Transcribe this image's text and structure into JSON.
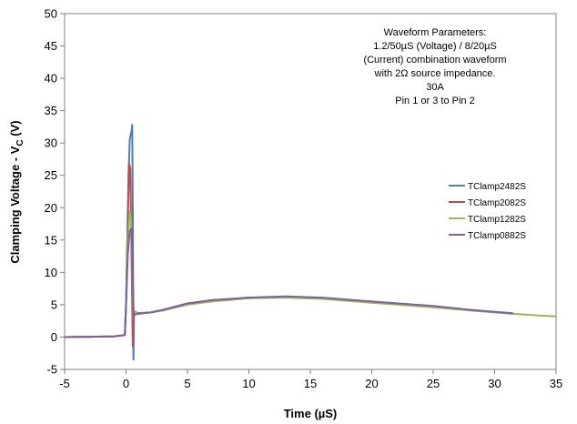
{
  "chart_data": {
    "type": "line",
    "title": "",
    "xlabel": "Time (µS)",
    "ylabel_main": "Clamping Voltage - V",
    "ylabel_sub": "C",
    "ylabel_unit": " (V)",
    "xlim": [
      -5,
      35
    ],
    "ylim": [
      -5,
      50
    ],
    "x_ticks": [
      -5,
      0,
      5,
      10,
      15,
      20,
      25,
      30,
      35
    ],
    "y_ticks": [
      -5,
      0,
      5,
      10,
      15,
      20,
      25,
      30,
      35,
      40,
      45,
      50
    ],
    "grid": false,
    "legend_position": "right",
    "annotation": [
      "Waveform Parameters:",
      "1.2/50µS (Voltage) / 8/20µS",
      "(Current) combination waveform",
      "with 2Ω source impedance.",
      "30A",
      "Pin 1 or 3 to Pin 2"
    ],
    "series": [
      {
        "name": "TClamp2482S",
        "color": "#4a7ebb",
        "x": [
          -5,
          -1,
          -0.1,
          0,
          0.2,
          0.3,
          0.45,
          0.5,
          0.55,
          0.6,
          0.65,
          1,
          2,
          3,
          5,
          7,
          10,
          13,
          16,
          20,
          25,
          28,
          31.5
        ],
        "y": [
          0,
          0.1,
          0.3,
          5,
          25,
          30.5,
          32,
          32.8,
          20,
          -3.5,
          4,
          3.7,
          3.8,
          4.2,
          5.1,
          5.6,
          6.1,
          6.2,
          6.0,
          5.4,
          4.7,
          4.2,
          3.6
        ]
      },
      {
        "name": "TClamp2082S",
        "color": "#be4b48",
        "x": [
          -5,
          -1,
          -0.1,
          0,
          0.15,
          0.25,
          0.35,
          0.45,
          0.55,
          0.6,
          0.65,
          1,
          2,
          3,
          5,
          7,
          10,
          13,
          16,
          20,
          25,
          28,
          31.5
        ],
        "y": [
          0,
          0.1,
          0.3,
          5,
          18,
          26.8,
          26,
          12,
          -1.5,
          3,
          4,
          3.7,
          3.8,
          4.2,
          5.2,
          5.7,
          6.1,
          6.2,
          6.0,
          5.5,
          4.7,
          4.2,
          3.6
        ]
      },
      {
        "name": "TClamp1282S",
        "color": "#98b954",
        "x": [
          -5,
          -1,
          -0.1,
          0,
          0.15,
          0.3,
          0.4,
          0.5,
          0.6,
          0.7,
          1,
          2,
          3,
          5,
          7,
          10,
          13,
          16,
          20,
          25,
          30,
          33,
          35
        ],
        "y": [
          0,
          0.1,
          0.3,
          5,
          15,
          19.5,
          18,
          12,
          3,
          4,
          3.6,
          3.8,
          4.1,
          5.0,
          5.5,
          6.0,
          6.1,
          5.9,
          5.3,
          4.6,
          3.8,
          3.4,
          3.2
        ]
      },
      {
        "name": "TClamp0882S",
        "color": "#7d60a0",
        "x": [
          -5,
          -1,
          -0.1,
          0,
          0.15,
          0.3,
          0.45,
          0.55,
          0.62,
          0.7,
          1,
          2,
          3,
          5,
          7,
          10,
          13,
          16,
          20,
          25,
          28,
          31.5
        ],
        "y": [
          0,
          0.1,
          0.3,
          5,
          13,
          16.5,
          16.8,
          10,
          3,
          3.5,
          3.6,
          3.8,
          4.2,
          5.2,
          5.7,
          6.1,
          6.3,
          6.1,
          5.5,
          4.8,
          4.2,
          3.7
        ]
      }
    ]
  }
}
